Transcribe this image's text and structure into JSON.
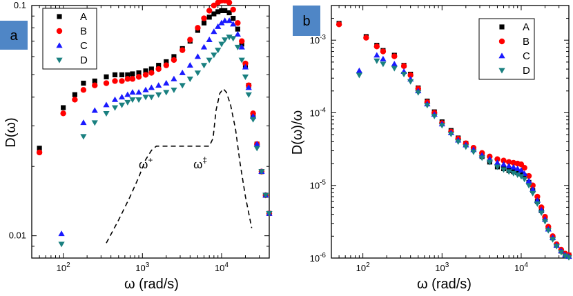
{
  "colors": {
    "A": "#000000",
    "B": "#ff0000",
    "C": "#1a1aff",
    "D": "#1a8080",
    "badge": "#4f86c6"
  },
  "chart_data": [
    {
      "panel": "a",
      "type": "scatter",
      "xscale": "log",
      "yscale": "log",
      "xlim": [
        40,
        40000
      ],
      "ylim": [
        0.008,
        0.1
      ],
      "xlabel": "ω (rad/s)",
      "ylabel": "D(ω)",
      "xticks": [
        {
          "v": 100,
          "b": "10",
          "e": "2"
        },
        {
          "v": 1000,
          "b": "10",
          "e": "3"
        },
        {
          "v": 10000,
          "b": "10",
          "e": "4"
        }
      ],
      "yticks": [
        {
          "v": 0.01,
          "label": "0.01"
        },
        {
          "v": 0.1,
          "label": "0.1"
        }
      ],
      "legend": "top-left",
      "series": [
        {
          "name": "A",
          "marker": "square",
          "x": [
            50,
            100,
            140,
            180,
            250,
            350,
            450,
            550,
            650,
            750,
            900,
            1100,
            1300,
            1600,
            2000,
            2500,
            3200,
            4000,
            5000,
            6000,
            7000,
            8000,
            9000,
            10000,
            11000,
            12500,
            14000,
            16000,
            18000,
            20000,
            22000,
            25000,
            28000,
            32000,
            36000,
            40000
          ],
          "y": [
            0.024,
            0.036,
            0.041,
            0.046,
            0.047,
            0.049,
            0.05,
            0.05,
            0.05,
            0.0505,
            0.051,
            0.052,
            0.053,
            0.055,
            0.057,
            0.06,
            0.065,
            0.07,
            0.078,
            0.084,
            0.089,
            0.092,
            0.094,
            0.095,
            0.095,
            0.093,
            0.088,
            0.079,
            0.068,
            0.055,
            0.045,
            0.033,
            0.025,
            0.019,
            0.015,
            0.0125
          ]
        },
        {
          "name": "B",
          "marker": "circle",
          "x": [
            50,
            100,
            140,
            180,
            250,
            350,
            450,
            550,
            650,
            750,
            900,
            1100,
            1300,
            1600,
            2000,
            2500,
            3200,
            4000,
            5000,
            6000,
            7000,
            8000,
            9000,
            10000,
            11000,
            12500,
            14000,
            16000,
            18000,
            20000,
            22000,
            25000,
            28000,
            32000,
            36000,
            40000
          ],
          "y": [
            0.023,
            0.034,
            0.039,
            0.043,
            0.045,
            0.046,
            0.047,
            0.047,
            0.048,
            0.048,
            0.049,
            0.05,
            0.051,
            0.053,
            0.055,
            0.058,
            0.064,
            0.071,
            0.08,
            0.088,
            0.095,
            0.1,
            0.103,
            0.105,
            0.105,
            0.103,
            0.096,
            0.084,
            0.07,
            0.056,
            0.045,
            0.034,
            0.025,
            0.019,
            0.015,
            0.0125
          ]
        },
        {
          "name": "C",
          "marker": "triangle-up",
          "x": [
            95,
            180,
            250,
            350,
            450,
            550,
            650,
            750,
            900,
            1100,
            1300,
            1600,
            2000,
            2500,
            3200,
            4000,
            5000,
            6000,
            7000,
            8000,
            9000,
            10000,
            11000,
            12500,
            14000,
            16000,
            18000,
            20000,
            22000,
            25000,
            28000,
            32000,
            36000,
            40000
          ],
          "y": [
            0.0102,
            0.031,
            0.035,
            0.037,
            0.039,
            0.04,
            0.041,
            0.042,
            0.042,
            0.043,
            0.044,
            0.045,
            0.046,
            0.048,
            0.051,
            0.055,
            0.06,
            0.066,
            0.071,
            0.077,
            0.081,
            0.084,
            0.086,
            0.086,
            0.083,
            0.075,
            0.066,
            0.054,
            0.044,
            0.033,
            0.025,
            0.019,
            0.015,
            0.0125
          ]
        },
        {
          "name": "D",
          "marker": "triangle-down",
          "x": [
            95,
            180,
            250,
            350,
            450,
            550,
            650,
            750,
            900,
            1100,
            1300,
            1600,
            2000,
            2500,
            3200,
            4000,
            5000,
            6000,
            7000,
            8000,
            9000,
            10000,
            11000,
            12500,
            14000,
            16000,
            18000,
            20000,
            22000,
            25000,
            28000,
            32000,
            36000,
            40000
          ],
          "y": [
            0.0092,
            0.027,
            0.031,
            0.034,
            0.036,
            0.037,
            0.038,
            0.039,
            0.039,
            0.04,
            0.04,
            0.041,
            0.042,
            0.043,
            0.045,
            0.048,
            0.051,
            0.055,
            0.058,
            0.061,
            0.064,
            0.068,
            0.071,
            0.073,
            0.072,
            0.066,
            0.058,
            0.049,
            0.041,
            0.032,
            0.024,
            0.019,
            0.015,
            0.0125
          ]
        }
      ],
      "reference_curve": {
        "style": "dashed",
        "x": [
          350,
          500,
          700,
          900,
          1100,
          1300,
          1500,
          2000,
          3000,
          4000,
          5000,
          6000,
          7000,
          7800,
          8500,
          9500,
          10500,
          11500,
          13000,
          15000,
          17000,
          20000,
          24000
        ],
        "y": [
          0.0093,
          0.0117,
          0.0148,
          0.018,
          0.0214,
          0.0235,
          0.0245,
          0.0245,
          0.0245,
          0.0245,
          0.0245,
          0.0245,
          0.0245,
          0.0265,
          0.035,
          0.0415,
          0.0435,
          0.042,
          0.037,
          0.029,
          0.021,
          0.0148,
          0.0108
        ]
      },
      "annotations": [
        {
          "text": "ω",
          "sup": "+",
          "x": 900,
          "y": 0.021
        },
        {
          "text": "ω",
          "sup": "‡",
          "x": 4400,
          "y": 0.021
        }
      ]
    },
    {
      "panel": "b",
      "type": "scatter",
      "xscale": "log",
      "yscale": "log",
      "xlim": [
        40,
        40000
      ],
      "ylim": [
        1e-06,
        0.003
      ],
      "xlabel": "ω (rad/s)",
      "ylabel": "D(ω)/ω",
      "xticks": [
        {
          "v": 100,
          "b": "10",
          "e": "2"
        },
        {
          "v": 1000,
          "b": "10",
          "e": "3"
        },
        {
          "v": 10000,
          "b": "10",
          "e": "4"
        }
      ],
      "yticks": [
        {
          "v": 0.001,
          "b": "10",
          "e": "-3"
        },
        {
          "v": 0.0001,
          "b": "10",
          "e": "-4"
        },
        {
          "v": 1e-05,
          "b": "10",
          "e": "-5"
        },
        {
          "v": 1e-06,
          "b": "10",
          "e": "-6"
        }
      ],
      "legend": "top-right",
      "series": [
        {
          "name": "A",
          "marker": "square",
          "x": [
            50,
            110,
            150,
            180,
            250,
            330,
            400,
            500,
            650,
            800,
            1000,
            1300,
            1600,
            2000,
            2500,
            3200,
            4000,
            5000,
            6000,
            7000,
            8000,
            9000,
            10000,
            11000,
            12500,
            14000,
            16000,
            18000,
            20000,
            22000,
            25000,
            28000,
            32000,
            36000,
            40000
          ],
          "y": [
            0.0017,
            0.00112,
            0.00085,
            0.00072,
            0.00062,
            0.00045,
            0.00034,
            0.00022,
            0.000145,
            0.000103,
            7.5e-05,
            5.7e-05,
            4.5e-05,
            3.8e-05,
            3.2e-05,
            2.5e-05,
            2.1e-05,
            1.8e-05,
            1.7e-05,
            1.6e-05,
            1.55e-05,
            1.5e-05,
            1.45e-05,
            1.35e-05,
            1.1e-05,
            8.5e-06,
            6e-06,
            4.5e-06,
            3.5e-06,
            2.6e-06,
            1.9e-06,
            1.5e-06,
            1.25e-06,
            1.1e-06,
            1.1e-06
          ]
        },
        {
          "name": "B",
          "marker": "circle",
          "x": [
            50,
            110,
            150,
            180,
            250,
            330,
            400,
            500,
            650,
            800,
            1000,
            1300,
            1600,
            2000,
            2500,
            3200,
            4000,
            5000,
            6000,
            7000,
            8000,
            9000,
            10000,
            11000,
            12500,
            14000,
            16000,
            18000,
            20000,
            22000,
            25000,
            28000,
            32000,
            36000,
            40000
          ],
          "y": [
            0.00165,
            0.00108,
            0.00082,
            0.0007,
            0.0006,
            0.00044,
            0.00033,
            0.000215,
            0.00014,
            0.0001,
            7.2e-05,
            5.5e-05,
            4.4e-05,
            3.8e-05,
            3.3e-05,
            2.8e-05,
            2.5e-05,
            2.3e-05,
            2.2e-05,
            2.1e-05,
            2.05e-05,
            2e-05,
            1.95e-05,
            1.75e-05,
            1.35e-05,
            1e-05,
            7e-06,
            5e-06,
            3.7e-06,
            2.7e-06,
            2e-06,
            1.55e-06,
            1.3e-06,
            1.15e-06,
            1.1e-06
          ]
        },
        {
          "name": "C",
          "marker": "triangle-up",
          "x": [
            90,
            150,
            180,
            250,
            330,
            400,
            500,
            650,
            800,
            1000,
            1300,
            1600,
            2000,
            2500,
            3200,
            4000,
            5000,
            6000,
            7000,
            8000,
            9000,
            10000,
            11000,
            12500,
            14000,
            16000,
            18000,
            20000,
            22000,
            25000,
            28000,
            32000,
            36000,
            40000
          ],
          "y": [
            0.00038,
            0.00062,
            0.00055,
            0.00047,
            0.00037,
            0.00029,
            0.0002,
            0.000132,
            9.5e-05,
            7e-05,
            5.3e-05,
            4.2e-05,
            3.6e-05,
            3.1e-05,
            2.6e-05,
            2.3e-05,
            2.05e-05,
            1.95e-05,
            1.85e-05,
            1.78e-05,
            1.7e-05,
            1.62e-05,
            1.45e-05,
            1.15e-05,
            8.8e-06,
            6.2e-06,
            4.6e-06,
            3.4e-06,
            2.5e-06,
            1.9e-06,
            1.5e-06,
            1.25e-06,
            1.1e-06,
            1.05e-06
          ]
        },
        {
          "name": "D",
          "marker": "triangle-down",
          "x": [
            90,
            150,
            180,
            250,
            330,
            400,
            500,
            650,
            800,
            1000,
            1300,
            1600,
            2000,
            2500,
            3200,
            4000,
            5000,
            6000,
            7000,
            8000,
            9000,
            10000,
            11000,
            12500,
            14000,
            16000,
            18000,
            20000,
            22000,
            25000,
            28000,
            32000,
            36000,
            40000
          ],
          "y": [
            0.00033,
            0.00052,
            0.00047,
            0.00041,
            0.00034,
            0.00027,
            0.00019,
            0.000127,
            9e-05,
            6.7e-05,
            5.1e-05,
            4e-05,
            3.4e-05,
            2.9e-05,
            2.4e-05,
            2.1e-05,
            1.8e-05,
            1.65e-05,
            1.55e-05,
            1.47e-05,
            1.4e-05,
            1.33e-05,
            1.22e-05,
            1e-05,
            7.8e-06,
            5.6e-06,
            4.2e-06,
            3.2e-06,
            2.4e-06,
            1.8e-06,
            1.45e-06,
            1.2e-06,
            1.07e-06,
            1.02e-06
          ]
        }
      ]
    }
  ],
  "panels": {
    "a": "a",
    "b": "b"
  }
}
